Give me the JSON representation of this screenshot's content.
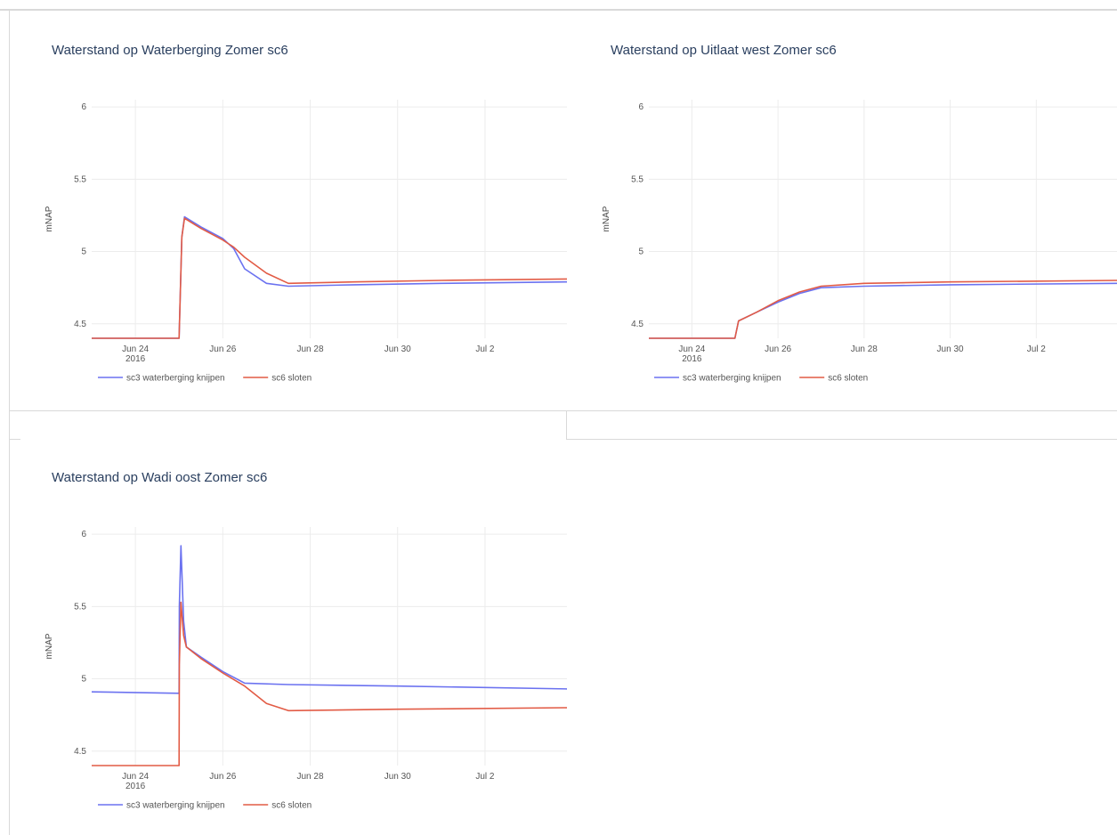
{
  "colors": {
    "sc3": "#6b72f0",
    "sc6": "#e25b45",
    "grid": "#ececec",
    "text": "#444444",
    "frame": "#d9d9d9"
  },
  "chart_data": [
    {
      "type": "line",
      "title": "Waterstand op Waterberging Zomer sc6",
      "ylabel": "mNAP",
      "xlim": [
        "2016-06-23 00:00",
        "2016-07-03 21:00"
      ],
      "ylim": [
        4.4,
        6.05
      ],
      "yticks": [
        4.5,
        5,
        5.5,
        6
      ],
      "ytick_labels": [
        "4.5",
        "5",
        "5.5",
        "6"
      ],
      "xticks": [
        "2016-06-24",
        "2016-06-26",
        "2016-06-28",
        "2016-06-30",
        "2016-07-02"
      ],
      "xtick_labels": [
        "Jun 24",
        "Jun 26",
        "Jun 28",
        "Jun 30",
        "Jul 2"
      ],
      "xtick_sublabel": "2016",
      "grid": true,
      "legend": "bottom",
      "series": [
        {
          "name": "sc3 waterberging knijpen",
          "color_key": "sc3",
          "x": [
            "2016-06-23 00:00",
            "2016-06-25 00:00",
            "2016-06-25 01:30",
            "2016-06-25 03:00",
            "2016-06-25 12:00",
            "2016-06-26 00:00",
            "2016-06-26 06:00",
            "2016-06-26 12:00",
            "2016-06-27 00:00",
            "2016-06-27 12:00",
            "2016-06-29 00:00",
            "2016-07-01 00:00",
            "2016-07-03 21:00"
          ],
          "y": [
            4.4,
            4.4,
            5.1,
            5.24,
            5.17,
            5.09,
            5.02,
            4.88,
            4.78,
            4.76,
            4.77,
            4.78,
            4.79
          ]
        },
        {
          "name": "sc6 sloten",
          "color_key": "sc6",
          "x": [
            "2016-06-23 00:00",
            "2016-06-25 00:00",
            "2016-06-25 01:30",
            "2016-06-25 03:00",
            "2016-06-25 12:00",
            "2016-06-26 00:00",
            "2016-06-26 06:00",
            "2016-06-26 12:00",
            "2016-06-27 00:00",
            "2016-06-27 12:00",
            "2016-06-29 00:00",
            "2016-07-01 00:00",
            "2016-07-03 21:00"
          ],
          "y": [
            4.4,
            4.4,
            5.1,
            5.23,
            5.16,
            5.08,
            5.03,
            4.96,
            4.85,
            4.78,
            4.79,
            4.8,
            4.81
          ]
        }
      ]
    },
    {
      "type": "line",
      "title": "Waterstand op Uitlaat west Zomer sc6",
      "ylabel": "mNAP",
      "xlim": [
        "2016-06-23 00:00",
        "2016-07-03 21:00"
      ],
      "ylim": [
        4.4,
        6.05
      ],
      "yticks": [
        4.5,
        5,
        5.5,
        6
      ],
      "ytick_labels": [
        "4.5",
        "5",
        "5.5",
        "6"
      ],
      "xticks": [
        "2016-06-24",
        "2016-06-26",
        "2016-06-28",
        "2016-06-30",
        "2016-07-02"
      ],
      "xtick_labels": [
        "Jun 24",
        "Jun 26",
        "Jun 28",
        "Jun 30",
        "Jul 2"
      ],
      "xtick_sublabel": "2016",
      "grid": true,
      "legend": "bottom",
      "series": [
        {
          "name": "sc3 waterberging knijpen",
          "color_key": "sc3",
          "x": [
            "2016-06-23 00:00",
            "2016-06-25 00:00",
            "2016-06-25 02:00",
            "2016-06-25 12:00",
            "2016-06-26 00:00",
            "2016-06-26 12:00",
            "2016-06-27 00:00",
            "2016-06-28 00:00",
            "2016-06-30 00:00",
            "2016-07-03 21:00"
          ],
          "y": [
            4.4,
            4.4,
            4.52,
            4.58,
            4.65,
            4.71,
            4.75,
            4.76,
            4.77,
            4.78
          ]
        },
        {
          "name": "sc6 sloten",
          "color_key": "sc6",
          "x": [
            "2016-06-23 00:00",
            "2016-06-25 00:00",
            "2016-06-25 02:00",
            "2016-06-25 12:00",
            "2016-06-26 00:00",
            "2016-06-26 12:00",
            "2016-06-27 00:00",
            "2016-06-28 00:00",
            "2016-06-30 00:00",
            "2016-07-03 21:00"
          ],
          "y": [
            4.4,
            4.4,
            4.52,
            4.58,
            4.66,
            4.72,
            4.76,
            4.78,
            4.79,
            4.8
          ]
        }
      ]
    },
    {
      "type": "line",
      "title": "Waterstand op Wadi oost Zomer sc6",
      "ylabel": "mNAP",
      "xlim": [
        "2016-06-23 00:00",
        "2016-07-03 21:00"
      ],
      "ylim": [
        4.4,
        6.05
      ],
      "yticks": [
        4.5,
        5,
        5.5,
        6
      ],
      "ytick_labels": [
        "4.5",
        "5",
        "5.5",
        "6"
      ],
      "xticks": [
        "2016-06-24",
        "2016-06-26",
        "2016-06-28",
        "2016-06-30",
        "2016-07-02"
      ],
      "xtick_labels": [
        "Jun 24",
        "Jun 26",
        "Jun 28",
        "Jun 30",
        "Jul 2"
      ],
      "xtick_sublabel": "2016",
      "grid": true,
      "legend": "bottom",
      "series": [
        {
          "name": "sc3 waterberging knijpen",
          "color_key": "sc3",
          "x": [
            "2016-06-23 00:00",
            "2016-06-25 00:00",
            "2016-06-25 00:10",
            "2016-06-25 01:00",
            "2016-06-25 02:30",
            "2016-06-25 04:00",
            "2016-06-25 12:00",
            "2016-06-26 00:00",
            "2016-06-26 12:00",
            "2016-06-27 12:00",
            "2016-06-30 00:00",
            "2016-07-03 21:00"
          ],
          "y": [
            4.91,
            4.9,
            5.5,
            5.92,
            5.4,
            5.22,
            5.15,
            5.05,
            4.97,
            4.96,
            4.95,
            4.93
          ]
        },
        {
          "name": "sc6 sloten",
          "color_key": "sc6",
          "x": [
            "2016-06-23 00:00",
            "2016-06-25 00:00",
            "2016-06-25 00:10",
            "2016-06-25 01:00",
            "2016-06-25 02:30",
            "2016-06-25 04:00",
            "2016-06-25 12:00",
            "2016-06-26 00:00",
            "2016-06-26 12:00",
            "2016-06-27 00:00",
            "2016-06-27 12:00",
            "2016-06-30 00:00",
            "2016-07-03 21:00"
          ],
          "y": [
            4.4,
            4.4,
            5.1,
            5.53,
            5.3,
            5.22,
            5.14,
            5.04,
            4.95,
            4.83,
            4.78,
            4.79,
            4.8
          ]
        }
      ]
    }
  ]
}
